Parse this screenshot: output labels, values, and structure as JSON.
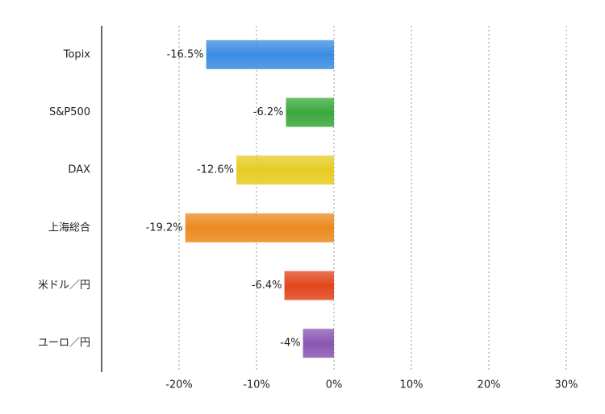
{
  "chart_data": {
    "type": "hbar",
    "categories": [
      "Topix",
      "S&P500",
      "DAX",
      "上海総合",
      "米ドル／円",
      "ユーロ／円"
    ],
    "values": [
      -16.5,
      -6.2,
      -12.6,
      -19.2,
      -6.4,
      -4
    ],
    "value_labels": [
      "-16.5%",
      "-6.2%",
      "-12.6%",
      "-19.2%",
      "-6.4%",
      "-4%"
    ],
    "colors": [
      "#3a8ce2",
      "#3aa83c",
      "#e6cc22",
      "#ea8a1e",
      "#e2461c",
      "#8a56b2"
    ],
    "xlim": [
      -30,
      30
    ],
    "xticks": [
      {
        "value": -20,
        "label": "-20%"
      },
      {
        "value": -10,
        "label": "-10%"
      },
      {
        "value": 0,
        "label": "0%"
      },
      {
        "value": 10,
        "label": "10%"
      },
      {
        "value": 20,
        "label": "20%"
      },
      {
        "value": 30,
        "label": "30%"
      }
    ],
    "grid": true
  }
}
